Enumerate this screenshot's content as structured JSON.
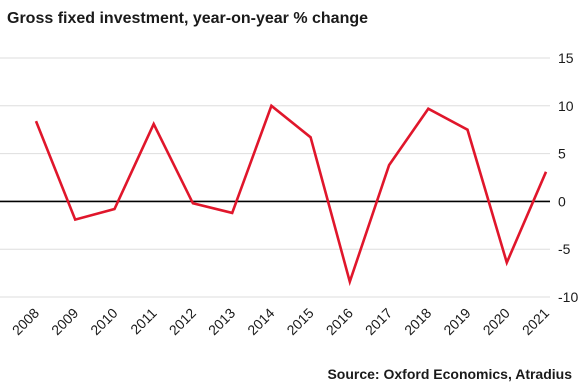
{
  "chart_data": {
    "type": "line",
    "title": "Gross fixed investment, year-on-year % change",
    "source": "Source: Oxford Economics, Atradius",
    "xlabel": "",
    "ylabel": "",
    "x": [
      "2008",
      "2009",
      "2010",
      "2011",
      "2012",
      "2013",
      "2014",
      "2015",
      "2016",
      "2017",
      "2018",
      "2019",
      "2020",
      "2021"
    ],
    "series": [
      {
        "values": [
          8.4,
          -1.9,
          -0.8,
          8.1,
          -0.2,
          -1.2,
          10.0,
          6.7,
          -8.4,
          3.8,
          9.7,
          7.5,
          -6.4,
          3.1
        ],
        "color": "#e0162b"
      }
    ],
    "ylim": [
      -10,
      15
    ],
    "yticks": [
      -10,
      -5,
      0,
      5,
      10,
      15
    ],
    "ytick_labels": [
      "-10",
      "-5",
      "0",
      "5",
      "10",
      "15"
    ],
    "y_axis_position": "right",
    "grid": "horizontal",
    "zero_line_color": "#000000",
    "grid_color": "#dedede"
  }
}
